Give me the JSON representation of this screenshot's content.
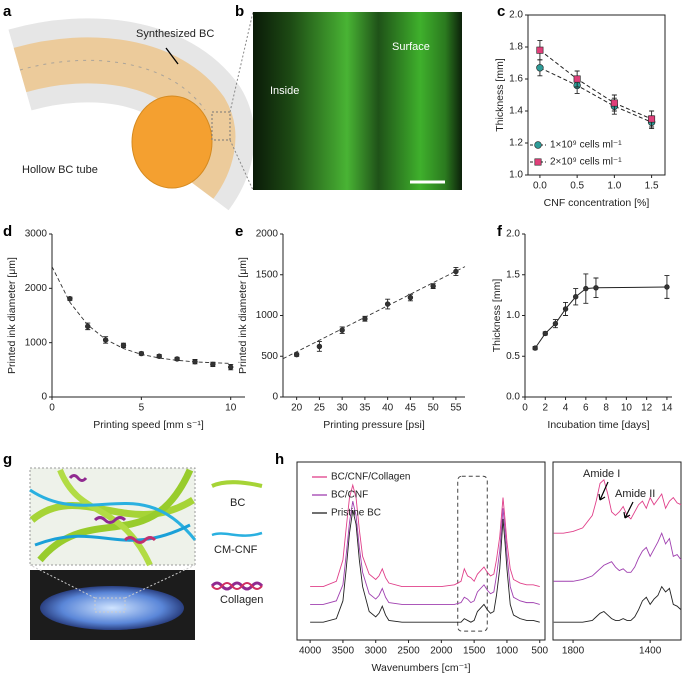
{
  "panels": [
    {
      "panel_label": "a",
      "annotations": [
        "Synthesized BC",
        "Hollow BC tube"
      ]
    },
    {
      "panel_label": "b",
      "annotations": [
        "Inside",
        "Surface"
      ]
    },
    {
      "panel_label": "g",
      "annotations": [
        "BC",
        "CM-CNF",
        "Collagen"
      ]
    }
  ],
  "chart_data": [
    {
      "type": "line",
      "panel_label": "c",
      "frame": "box",
      "legend": "lower left",
      "xlabel": "CNF concentration [%]",
      "ylabel": "Thickness [mm]",
      "xlim": [
        -0.16,
        1.68
      ],
      "ylim": [
        1.0,
        2.0
      ],
      "xticks": [
        {
          "value": 0,
          "label": "0.0"
        },
        0.5,
        {
          "value": 1,
          "label": "1.0"
        },
        1.5
      ],
      "yticks": [
        {
          "value": 1,
          "label": "1.0"
        },
        1.2,
        1.4,
        1.6,
        1.8,
        {
          "value": 2,
          "label": "2.0"
        }
      ],
      "series": [
        {
          "name": "1×10⁹ cells ml⁻¹",
          "color": "#2e9c98",
          "marker": "circle",
          "line_style": "dashed",
          "x": [
            0,
            0.5,
            1,
            1.5
          ],
          "values": [
            1.67,
            1.56,
            1.43,
            1.33
          ],
          "errors": [
            0.05,
            0.05,
            0.05,
            0.04
          ]
        },
        {
          "name": "2×10⁹ cells ml⁻¹",
          "color": "#e0407a",
          "marker": "square",
          "line_style": "dashed",
          "x": [
            0,
            0.5,
            1,
            1.5
          ],
          "values": [
            1.78,
            1.6,
            1.45,
            1.35
          ],
          "errors": [
            0.06,
            0.05,
            0.05,
            0.05
          ]
        }
      ]
    },
    {
      "type": "line",
      "panel_label": "d",
      "frame": "axes",
      "xlabel": "Printing speed [mm s⁻¹]",
      "ylabel": "Printed ink diameter [μm]",
      "xlim": [
        0,
        10.8
      ],
      "ylim": [
        0,
        3000
      ],
      "xticks": [
        0,
        5,
        10
      ],
      "yticks": [
        0,
        1000,
        2000,
        3000
      ],
      "series": [
        {
          "color": "#333333",
          "marker": "circle",
          "line_style": "none",
          "x": [
            1,
            2,
            3,
            4,
            5,
            6,
            7,
            8,
            9,
            10
          ],
          "values": [
            1810,
            1300,
            1050,
            950,
            800,
            750,
            700,
            650,
            600,
            550
          ],
          "errors": [
            30,
            60,
            60,
            40,
            30,
            30,
            30,
            40,
            40,
            50
          ]
        },
        {
          "color": "#333333",
          "marker": "none",
          "line_style": "dashed",
          "x": [
            0,
            1,
            2,
            3,
            4,
            5,
            6,
            7,
            8,
            9,
            10
          ],
          "values": [
            2400,
            1743,
            1326,
            1061,
            892,
            785,
            717,
            675,
            647,
            630,
            619
          ]
        }
      ]
    },
    {
      "type": "line",
      "panel_label": "e",
      "frame": "axes",
      "xlabel": "Printing pressure [psi]",
      "ylabel": "Printed ink diameter [μm]",
      "xlim": [
        17,
        57
      ],
      "ylim": [
        0,
        2000
      ],
      "xticks": [
        20,
        25,
        30,
        35,
        40,
        45,
        50,
        55
      ],
      "yticks": [
        0,
        500,
        1000,
        1500,
        2000
      ],
      "series": [
        {
          "color": "#333333",
          "marker": "circle",
          "line_style": "none",
          "x": [
            20,
            25,
            30,
            35,
            40,
            45,
            50,
            55
          ],
          "values": [
            520,
            620,
            820,
            960,
            1140,
            1220,
            1360,
            1540
          ],
          "errors": [
            20,
            60,
            40,
            30,
            60,
            40,
            30,
            50
          ]
        },
        {
          "color": "#333333",
          "marker": "none",
          "line_style": "dashed",
          "x": [
            17,
            57
          ],
          "values": [
            470,
            1600
          ]
        }
      ]
    },
    {
      "type": "line",
      "panel_label": "f",
      "frame": "axes",
      "xlabel": "Incubation time [days]",
      "ylabel": "Thickness [mm]",
      "xlim": [
        0,
        14.5
      ],
      "ylim": [
        0,
        2
      ],
      "xticks": [
        0,
        2,
        4,
        6,
        8,
        10,
        12,
        14
      ],
      "yticks": [
        {
          "value": 0,
          "label": "0.0"
        },
        0.5,
        {
          "value": 1,
          "label": "1.0"
        },
        1.5,
        {
          "value": 2,
          "label": "2.0"
        }
      ],
      "series": [
        {
          "color": "#333333",
          "marker": "circle",
          "line_style": "solid",
          "x": [
            1,
            2,
            3,
            4,
            5,
            6,
            7,
            14
          ],
          "values": [
            0.6,
            0.78,
            0.9,
            1.08,
            1.23,
            1.33,
            1.34,
            1.35
          ],
          "errors": [
            0.02,
            0.02,
            0.05,
            0.08,
            0.1,
            0.18,
            0.12,
            0.14
          ]
        }
      ]
    },
    {
      "type": "line",
      "panel_label": "h",
      "frame": "box",
      "legend": "upper left",
      "xlabel": "Wavenumbers [cm⁻¹]",
      "xlim": [
        4200,
        420
      ],
      "ylim": [
        0,
        100
      ],
      "xticks": [
        4000,
        3500,
        3000,
        2500,
        2000,
        1500,
        1000,
        500
      ],
      "series": [
        {
          "name": "BC/CNF/Collagen",
          "color": "#e0408a",
          "marker": "none",
          "line_style": "solid",
          "x": [
            4000,
            3800,
            3600,
            3500,
            3450,
            3400,
            3350,
            3300,
            3250,
            3200,
            3100,
            3000,
            2950,
            2900,
            2850,
            2800,
            2600,
            2400,
            2200,
            2000,
            1800,
            1700,
            1650,
            1600,
            1550,
            1500,
            1450,
            1400,
            1350,
            1300,
            1250,
            1200,
            1160,
            1110,
            1060,
            1030,
            1000,
            950,
            900,
            800,
            700,
            600,
            500
          ],
          "values": [
            30,
            30,
            33,
            45,
            63,
            80,
            87,
            80,
            62,
            47,
            37,
            34,
            36,
            40,
            35,
            32,
            30,
            30,
            30,
            30,
            31,
            33,
            40,
            36,
            35,
            33,
            37,
            39,
            41,
            38,
            36,
            37,
            45,
            58,
            80,
            68,
            55,
            40,
            34,
            32,
            31,
            31,
            30
          ]
        },
        {
          "name": "BC/CNF",
          "color": "#a040b0",
          "marker": "none",
          "line_style": "solid",
          "x": [
            4000,
            3800,
            3600,
            3500,
            3450,
            3400,
            3350,
            3300,
            3250,
            3200,
            3100,
            3000,
            2950,
            2900,
            2850,
            2800,
            2600,
            2400,
            2200,
            2000,
            1800,
            1700,
            1650,
            1600,
            1550,
            1500,
            1450,
            1400,
            1350,
            1300,
            1250,
            1200,
            1160,
            1110,
            1060,
            1030,
            1000,
            950,
            900,
            800,
            700,
            600,
            500
          ],
          "values": [
            20,
            20,
            22,
            31,
            48,
            66,
            78,
            70,
            52,
            38,
            26,
            23,
            25,
            29,
            24,
            21,
            20,
            20,
            20,
            20,
            20,
            21,
            24,
            23,
            21,
            22,
            27,
            29,
            31,
            28,
            26,
            27,
            36,
            50,
            74,
            62,
            48,
            30,
            24,
            22,
            21,
            21,
            20
          ]
        },
        {
          "name": "Pristine BC",
          "color": "#222222",
          "marker": "none",
          "line_style": "solid",
          "x": [
            4000,
            3800,
            3600,
            3500,
            3450,
            3400,
            3350,
            3300,
            3250,
            3200,
            3100,
            3000,
            2950,
            2900,
            2850,
            2800,
            2600,
            2400,
            2200,
            2000,
            1800,
            1700,
            1650,
            1600,
            1550,
            1500,
            1450,
            1400,
            1350,
            1300,
            1250,
            1200,
            1160,
            1110,
            1060,
            1030,
            1000,
            950,
            900,
            800,
            700,
            600,
            500
          ],
          "values": [
            10,
            10,
            12,
            22,
            40,
            60,
            73,
            65,
            45,
            30,
            16,
            13,
            15,
            19,
            14,
            11,
            10,
            10,
            10,
            10,
            10,
            10,
            12,
            11,
            10,
            11,
            16,
            18,
            20,
            17,
            15,
            16,
            25,
            40,
            68,
            55,
            40,
            20,
            14,
            12,
            11,
            11,
            10
          ]
        }
      ]
    },
    {
      "type": "line",
      "frame": "box",
      "annotations": [
        "Amide I",
        "Amide II"
      ],
      "xlim": [
        1904,
        1240
      ],
      "ylim": [
        0,
        100
      ],
      "xticks": [
        1800,
        1400
      ],
      "series": [
        {
          "color": "#e0408a",
          "marker": "none",
          "line_style": "solid",
          "x": [
            1900,
            1850,
            1800,
            1750,
            1700,
            1680,
            1660,
            1640,
            1620,
            1600,
            1580,
            1560,
            1540,
            1520,
            1500,
            1480,
            1460,
            1440,
            1420,
            1400,
            1380,
            1360,
            1340,
            1320,
            1300,
            1280,
            1260,
            1240
          ],
          "values": [
            60,
            60,
            61,
            63,
            70,
            78,
            88,
            90,
            82,
            72,
            70,
            72,
            75,
            70,
            68,
            72,
            76,
            78,
            74,
            80,
            76,
            79,
            82,
            74,
            78,
            80,
            77,
            76
          ]
        },
        {
          "color": "#a040b0",
          "marker": "none",
          "line_style": "solid",
          "x": [
            1900,
            1850,
            1800,
            1750,
            1700,
            1680,
            1660,
            1640,
            1620,
            1600,
            1580,
            1560,
            1540,
            1520,
            1500,
            1480,
            1460,
            1440,
            1420,
            1400,
            1380,
            1360,
            1340,
            1320,
            1300,
            1280,
            1260,
            1240
          ],
          "values": [
            33,
            33,
            33,
            34,
            36,
            38,
            40,
            42,
            43,
            44,
            41,
            39,
            40,
            38,
            38,
            41,
            46,
            50,
            52,
            47,
            51,
            55,
            60,
            54,
            57,
            47,
            48,
            45
          ]
        },
        {
          "color": "#222222",
          "marker": "none",
          "line_style": "solid",
          "x": [
            1900,
            1850,
            1800,
            1750,
            1700,
            1680,
            1660,
            1640,
            1620,
            1600,
            1580,
            1560,
            1540,
            1520,
            1500,
            1480,
            1460,
            1440,
            1420,
            1400,
            1380,
            1360,
            1340,
            1320,
            1300,
            1280,
            1260,
            1240
          ],
          "values": [
            10,
            10,
            10,
            10,
            11,
            13,
            15,
            16,
            14,
            12,
            11,
            11,
            12,
            11,
            11,
            13,
            17,
            22,
            24,
            20,
            23,
            25,
            30,
            27,
            29,
            20,
            19,
            17
          ]
        }
      ]
    }
  ]
}
